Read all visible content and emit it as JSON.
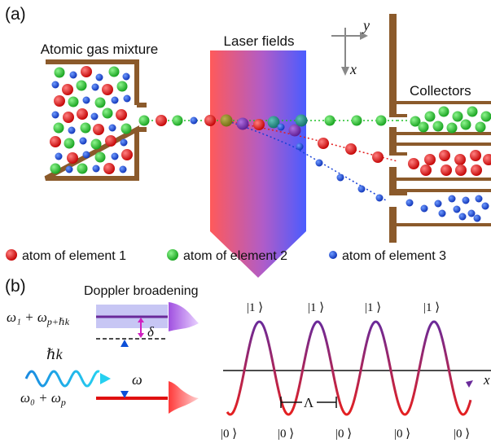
{
  "panel_a": {
    "label": "(a)",
    "gas_box_label": "Atomic gas mixture",
    "laser_label": "Laser fields",
    "collectors_label": "Collectors",
    "axes": {
      "y": "y",
      "x": "x"
    },
    "colors": {
      "element1": "#e21d1d",
      "element2": "#22c22a",
      "element3": "#1740d6",
      "wood": "#8b5a2b"
    },
    "legend": [
      {
        "text": "atom of element 1",
        "color": "#e21d1d"
      },
      {
        "text": "atom of element 2",
        "color": "#22c22a"
      },
      {
        "text": "atom of element 3",
        "color": "#1740d6"
      }
    ]
  },
  "panel_b": {
    "label": "(b)",
    "doppler_label": "Doppler broadening",
    "upper_level": "ω₁ + ω",
    "upper_level_sub": "p+ℏk",
    "lower_level": "ω₀ + ω",
    "lower_level_sub": "p",
    "delta": "δ",
    "omega": "ω",
    "photon": "ℏk",
    "lambda": "Λ",
    "axis_x": "x",
    "states_top": [
      "|1 ⟩",
      "|1 ⟩",
      "|1 ⟩",
      "|1 ⟩"
    ],
    "states_bottom": [
      "|0 ⟩",
      "|0 ⟩",
      "|0 ⟩",
      "|0 ⟩",
      "|0 ⟩"
    ]
  }
}
